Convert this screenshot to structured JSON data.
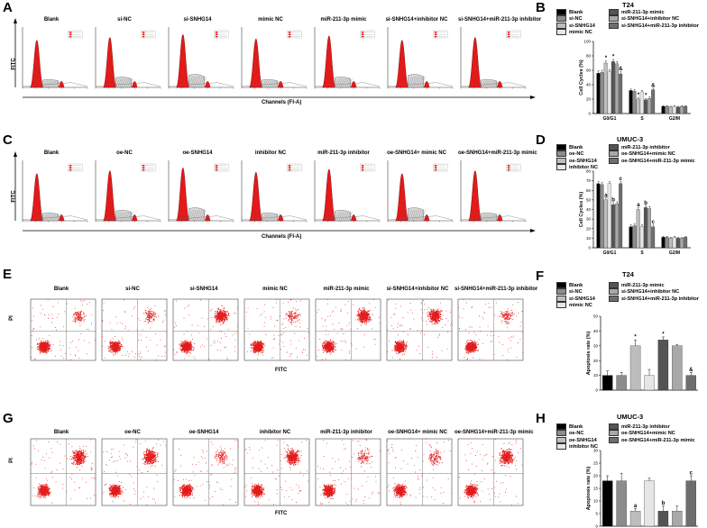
{
  "panels": {
    "A": {
      "label": "A",
      "y_axis": "FITC",
      "x_axis": "Channels (FI-A)",
      "titles": [
        "Blank",
        "si-NC",
        "si-SNHG14",
        "mimic NC",
        "miR-211-3p mimic",
        "si-SNHG14+inhibitor NC",
        "si-SNHG14+miR-211-3p inhibitor"
      ]
    },
    "C": {
      "label": "C",
      "y_axis": "FITC",
      "x_axis": "Channels (FI-A)",
      "titles": [
        "Blank",
        "oe-NC",
        "oe-SNHG14",
        "inhibitor NC",
        "miR-211-3p inhibitor",
        "oe-SNHG14+ mimic NC",
        "oe-SNHG14+miR-211-3p mimic"
      ]
    },
    "E": {
      "label": "E",
      "y_axis": "PI",
      "x_axis": "FITC",
      "titles": [
        "Blank",
        "si-NC",
        "si-SNHG14",
        "mimic NC",
        "miR-211-3p mimic",
        "si-SNHG14+inhibitor NC",
        "si-SNHG14+miR-211-3p inhibitor"
      ],
      "upper_pct": [
        "8.21%",
        "9.22%",
        "30.39%",
        "8.93%",
        "29.97%",
        "29.35%",
        "9.17%"
      ],
      "lower_pct": [
        "2.15%",
        "2.18%",
        "3.04%",
        "2.09%",
        "3.02%",
        "3.01%",
        "2.03%"
      ]
    },
    "G": {
      "label": "G",
      "y_axis": "PI",
      "x_axis": "FITC",
      "titles": [
        "Blank",
        "oe-NC",
        "oe-SNHG14",
        "inhibitor NC",
        "miR-211-3p inhibitor",
        "oe-SNHG14+ mimic NC",
        "oe-SNHG14+miR-211-3p mimic"
      ],
      "upper_pct": [
        "16.07%",
        "14.92%",
        "4.02%",
        "15.59%",
        "4.31%",
        "4.49%",
        "15.47%"
      ],
      "lower_pct": [
        "2.67%",
        "2.60%",
        "2.12%",
        "2.68%",
        "1.7%",
        "1.86%",
        "3.09%"
      ]
    },
    "B": {
      "label": "B",
      "cell_line": "T24"
    },
    "D": {
      "label": "D",
      "cell_line": "UMUC-3"
    },
    "F": {
      "label": "F",
      "cell_line": "T24"
    },
    "H": {
      "label": "H",
      "cell_line": "UMUC-3"
    }
  },
  "chart_data": [
    {
      "panel": "B",
      "type": "bar",
      "title": "T24",
      "ylabel": "Cell Cycles (%)",
      "xlabel": "",
      "categories": [
        "G0/G1",
        "S",
        "G2/M"
      ],
      "ylim": [
        0,
        100
      ],
      "yticks": [
        0,
        20,
        40,
        60,
        80,
        100
      ],
      "legend": [
        "Blank",
        "si-NC",
        "si-SNHG14",
        "mimic NC",
        "miR-211-3p mimic",
        "si-SNHG14+inhibitor NC",
        "si-SNHG14+miR-211-3p inhibitor"
      ],
      "colors": [
        "#000000",
        "#8c8c8c",
        "#bdbdbd",
        "#e6e6e6",
        "#545454",
        "#a8a8a8",
        "#6e6e6e"
      ],
      "series": [
        {
          "name": "Blank",
          "values": [
            56,
            32,
            10
          ],
          "errors": [
            3,
            2,
            1
          ]
        },
        {
          "name": "si-NC",
          "values": [
            57,
            31,
            10
          ],
          "errors": [
            3,
            2,
            1
          ]
        },
        {
          "name": "si-SNHG14",
          "values": [
            70,
            20,
            9
          ],
          "errors": [
            3,
            2,
            1
          ]
        },
        {
          "name": "mimic NC",
          "values": [
            58,
            30,
            10
          ],
          "errors": [
            3,
            2,
            1
          ]
        },
        {
          "name": "miR-211-3p mimic",
          "values": [
            72,
            19,
            9
          ],
          "errors": [
            3,
            2,
            1
          ]
        },
        {
          "name": "si-SNHG14+inhibitor NC",
          "values": [
            69,
            21,
            10
          ],
          "errors": [
            3,
            2,
            1
          ]
        },
        {
          "name": "si-SNHG14+miR-211-3p inhibitor",
          "values": [
            55,
            33,
            10
          ],
          "errors": [
            3,
            2,
            1
          ]
        }
      ],
      "annotations": [
        {
          "series": 2,
          "category": 0,
          "text": "*"
        },
        {
          "series": 4,
          "category": 0,
          "text": "*"
        },
        {
          "series": 6,
          "category": 0,
          "text": "&"
        },
        {
          "series": 2,
          "category": 1,
          "text": "*"
        },
        {
          "series": 4,
          "category": 1,
          "text": "*"
        },
        {
          "series": 6,
          "category": 1,
          "text": "&"
        }
      ]
    },
    {
      "panel": "D",
      "type": "bar",
      "title": "UMUC-3",
      "ylabel": "Cell Cycles (%)",
      "xlabel": "",
      "categories": [
        "G0/G1",
        "S",
        "G2/M"
      ],
      "ylim": [
        0,
        80
      ],
      "yticks": [
        0,
        10,
        20,
        30,
        40,
        50,
        60,
        70,
        80
      ],
      "legend": [
        "Blank",
        "oe-NC",
        "oe-SNHG14",
        "inhibitor NC",
        "miR-211-3p inhibitor",
        "oe-SNHG14+mimic NC",
        "oe-SNHG14+miR-211-3p mimic"
      ],
      "colors": [
        "#000000",
        "#8c8c8c",
        "#bdbdbd",
        "#e6e6e6",
        "#545454",
        "#a8a8a8",
        "#6e6e6e"
      ],
      "series": [
        {
          "name": "Blank",
          "values": [
            67,
            22,
            11
          ],
          "errors": [
            2,
            2,
            1
          ]
        },
        {
          "name": "oe-NC",
          "values": [
            66,
            23,
            11
          ],
          "errors": [
            2,
            2,
            1
          ]
        },
        {
          "name": "oe-SNHG14",
          "values": [
            50,
            40,
            10
          ],
          "errors": [
            2,
            2,
            1
          ]
        },
        {
          "name": "inhibitor NC",
          "values": [
            67,
            22,
            11
          ],
          "errors": [
            2,
            2,
            1
          ]
        },
        {
          "name": "miR-211-3p inhibitor",
          "values": [
            45,
            42,
            10
          ],
          "errors": [
            2,
            2,
            1
          ]
        },
        {
          "name": "oe-SNHG14+mimic NC",
          "values": [
            46,
            41,
            10
          ],
          "errors": [
            2,
            2,
            1
          ]
        },
        {
          "name": "oe-SNHG14+miR-211-3p mimic",
          "values": [
            67,
            22,
            11
          ],
          "errors": [
            2,
            2,
            1
          ]
        }
      ],
      "annotations": [
        {
          "series": 2,
          "category": 0,
          "text": "a"
        },
        {
          "series": 4,
          "category": 0,
          "text": "b"
        },
        {
          "series": 6,
          "category": 0,
          "text": "c"
        },
        {
          "series": 2,
          "category": 1,
          "text": "a"
        },
        {
          "series": 4,
          "category": 1,
          "text": "b"
        },
        {
          "series": 6,
          "category": 1,
          "text": "c"
        }
      ]
    },
    {
      "panel": "F",
      "type": "bar",
      "title": "T24",
      "ylabel": "Apoptosis rate (%)",
      "xlabel": "",
      "categories": [
        "Blank",
        "si-NC",
        "si-SNHG14",
        "mimic NC",
        "miR-211-3p mimic",
        "si-SNHG14+inhibitor NC",
        "si-SNHG14+miR-211-3p inhibitor"
      ],
      "ylim": [
        0,
        50
      ],
      "yticks": [
        0,
        10,
        20,
        30,
        40,
        50
      ],
      "legend": [
        "Blank",
        "si-NC",
        "si-SNHG14",
        "mimic NC",
        "miR-211-3p mimic",
        "si-SNHG14+inhibitor NC",
        "si-SNHG14+miR-211-3p inhibitor"
      ],
      "colors": [
        "#000000",
        "#8c8c8c",
        "#bdbdbd",
        "#e6e6e6",
        "#545454",
        "#a8a8a8",
        "#6e6e6e"
      ],
      "values": [
        10,
        10,
        30,
        10,
        34,
        30,
        10
      ],
      "errors": [
        3,
        2,
        4,
        4,
        2,
        1,
        2
      ],
      "annotations": [
        {
          "index": 2,
          "text": "*"
        },
        {
          "index": 4,
          "text": "*"
        },
        {
          "index": 6,
          "text": "&"
        }
      ]
    },
    {
      "panel": "H",
      "type": "bar",
      "title": "UMUC-3",
      "ylabel": "Apoptosis rate (%)",
      "xlabel": "",
      "categories": [
        "Blank",
        "oe-NC",
        "oe-SNHG14",
        "inhibitor NC",
        "miR-211-3p inhibitor",
        "oe-SNHG14+mimic NC",
        "oe-SNHG14+miR-211-3p mimic"
      ],
      "ylim": [
        0,
        30
      ],
      "yticks": [
        0,
        5,
        10,
        15,
        20,
        25,
        30
      ],
      "legend": [
        "Blank",
        "oe-NC",
        "oe-SNHG14",
        "inhibitor NC",
        "miR-211-3p inhibitor",
        "oe-SNHG14+mimic NC",
        "oe-SNHG14+miR-211-3p mimic"
      ],
      "colors": [
        "#000000",
        "#8c8c8c",
        "#bdbdbd",
        "#e6e6e6",
        "#545454",
        "#a8a8a8",
        "#6e6e6e"
      ],
      "values": [
        18,
        18,
        6,
        18,
        6,
        6,
        18
      ],
      "errors": [
        2,
        3,
        1,
        1,
        2,
        2,
        2
      ],
      "annotations": [
        {
          "index": 2,
          "text": "a"
        },
        {
          "index": 4,
          "text": "b"
        },
        {
          "index": 6,
          "text": "c"
        }
      ]
    }
  ]
}
